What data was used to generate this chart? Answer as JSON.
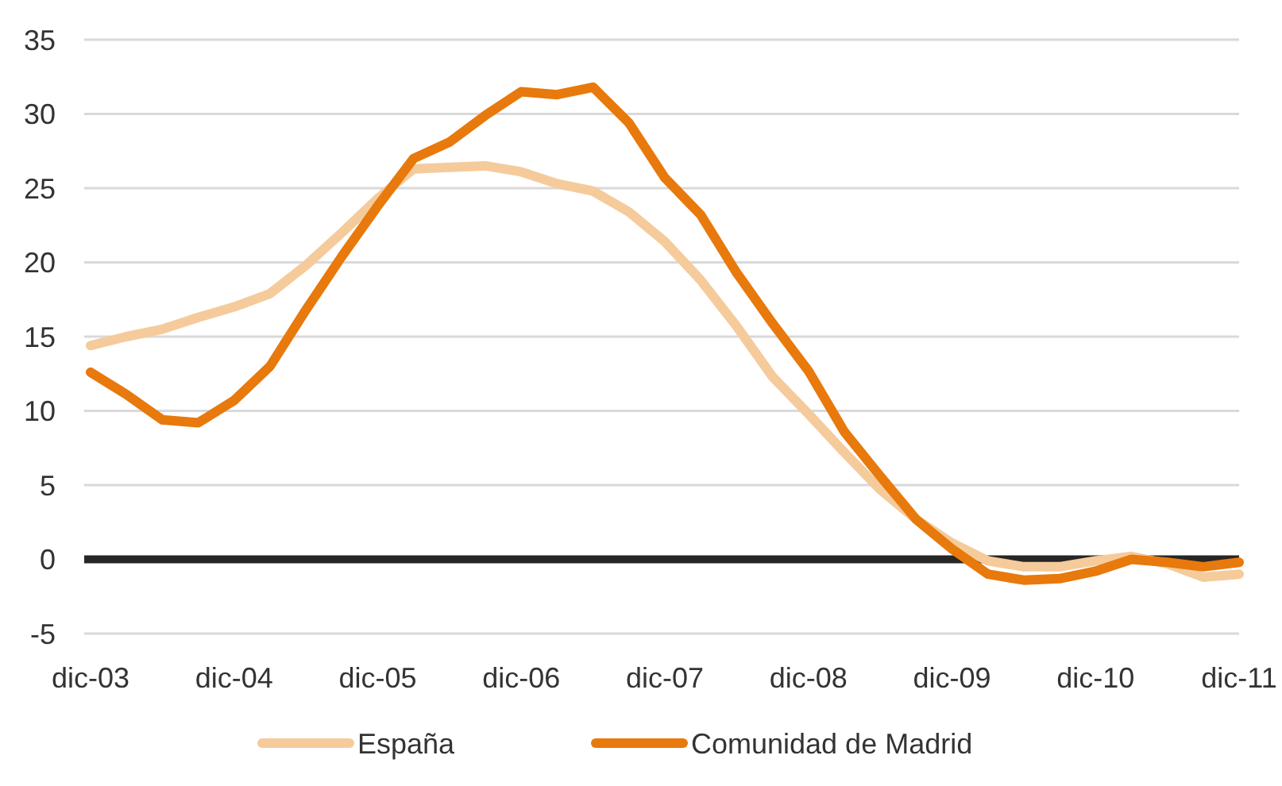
{
  "chart_data": {
    "type": "line",
    "categories": [
      "dic-03",
      null,
      null,
      null,
      "dic-04",
      null,
      null,
      null,
      "dic-05",
      null,
      null,
      null,
      "dic-06",
      null,
      null,
      null,
      "dic-07",
      null,
      null,
      null,
      "dic-08",
      null,
      null,
      null,
      "dic-09",
      null,
      null,
      null,
      "dic-10",
      null,
      null,
      null,
      "dic-11"
    ],
    "series": [
      {
        "name": "España",
        "color": "#f5cb9c",
        "values": [
          14.4,
          15.0,
          15.5,
          16.3,
          17.0,
          17.9,
          19.8,
          22.0,
          24.3,
          26.3,
          26.4,
          26.5,
          26.1,
          25.3,
          24.8,
          23.4,
          21.4,
          18.8,
          15.7,
          12.3,
          9.8,
          7.2,
          4.7,
          2.7,
          1.1,
          -0.1,
          -0.5,
          -0.5,
          -0.1,
          0.2,
          -0.3,
          -1.2,
          -1.0
        ]
      },
      {
        "name": "Comunidad de Madrid",
        "color": "#e8790c",
        "values": [
          12.6,
          11.1,
          9.4,
          9.2,
          10.7,
          13.0,
          16.8,
          20.4,
          23.8,
          27.0,
          28.1,
          29.9,
          31.5,
          31.3,
          31.8,
          29.4,
          25.7,
          23.2,
          19.3,
          15.9,
          12.7,
          8.6,
          5.6,
          2.7,
          0.7,
          -1.0,
          -1.4,
          -1.3,
          -0.8,
          0.0,
          -0.2,
          -0.5,
          -0.2
        ]
      }
    ],
    "ylim": [
      -5,
      35
    ],
    "yticks": [
      -5,
      0,
      5,
      10,
      15,
      20,
      25,
      30,
      35
    ],
    "ref_lines": [
      {
        "axis": "y",
        "value": 0,
        "color": "#262626"
      }
    ],
    "grid": "y",
    "legend": "bottom",
    "line_style": "solid",
    "marker": "none"
  }
}
